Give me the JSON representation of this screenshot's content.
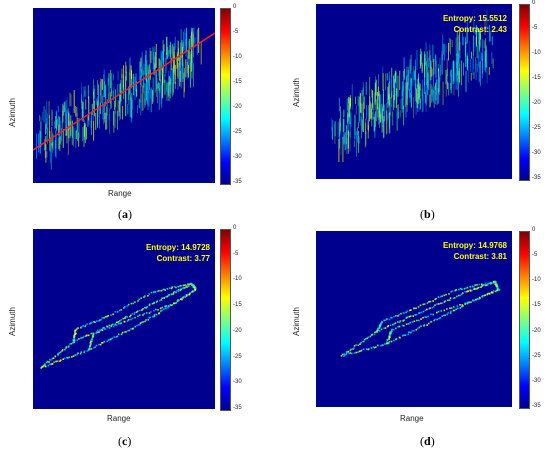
{
  "panels": [
    {
      "id": "a",
      "caption_open": "(",
      "caption_letter": "a",
      "caption_close": ")",
      "xlabel": "Range",
      "ylabel": "Azimuth",
      "entropy": "",
      "contrast": "",
      "show_line": true
    },
    {
      "id": "b",
      "caption_open": "(",
      "caption_letter": "b",
      "caption_close": ")",
      "xlabel": "Range",
      "ylabel": "Azimuth",
      "entropy": "Entropy: 15.5512",
      "contrast": "Contrast: 2.43",
      "show_line": false
    },
    {
      "id": "c",
      "caption_open": "(",
      "caption_letter": "c",
      "caption_close": ")",
      "xlabel": "Range",
      "ylabel": "Azimuth",
      "entropy": "Entropy: 14.9728",
      "contrast": "Contrast: 3.77",
      "show_line": false
    },
    {
      "id": "d",
      "caption_open": "(",
      "caption_letter": "d",
      "caption_close": ")",
      "xlabel": "Range",
      "ylabel": "Azimuth",
      "entropy": "Entropy: 14.9768",
      "contrast": "Contrast: 3.81",
      "show_line": false
    }
  ],
  "colorbar": {
    "ticks": [
      "0",
      "-5",
      "-10",
      "-15",
      "-20",
      "-25",
      "-30",
      "-35"
    ],
    "colors": [
      "#800000",
      "#ff0000",
      "#ff8000",
      "#ffff00",
      "#80ff80",
      "#00ffff",
      "#0080ff",
      "#0000ff",
      "#00008f"
    ]
  },
  "colors": {
    "background": "#00008f",
    "annotation": "#ffff00",
    "line": "#ff2020"
  }
}
